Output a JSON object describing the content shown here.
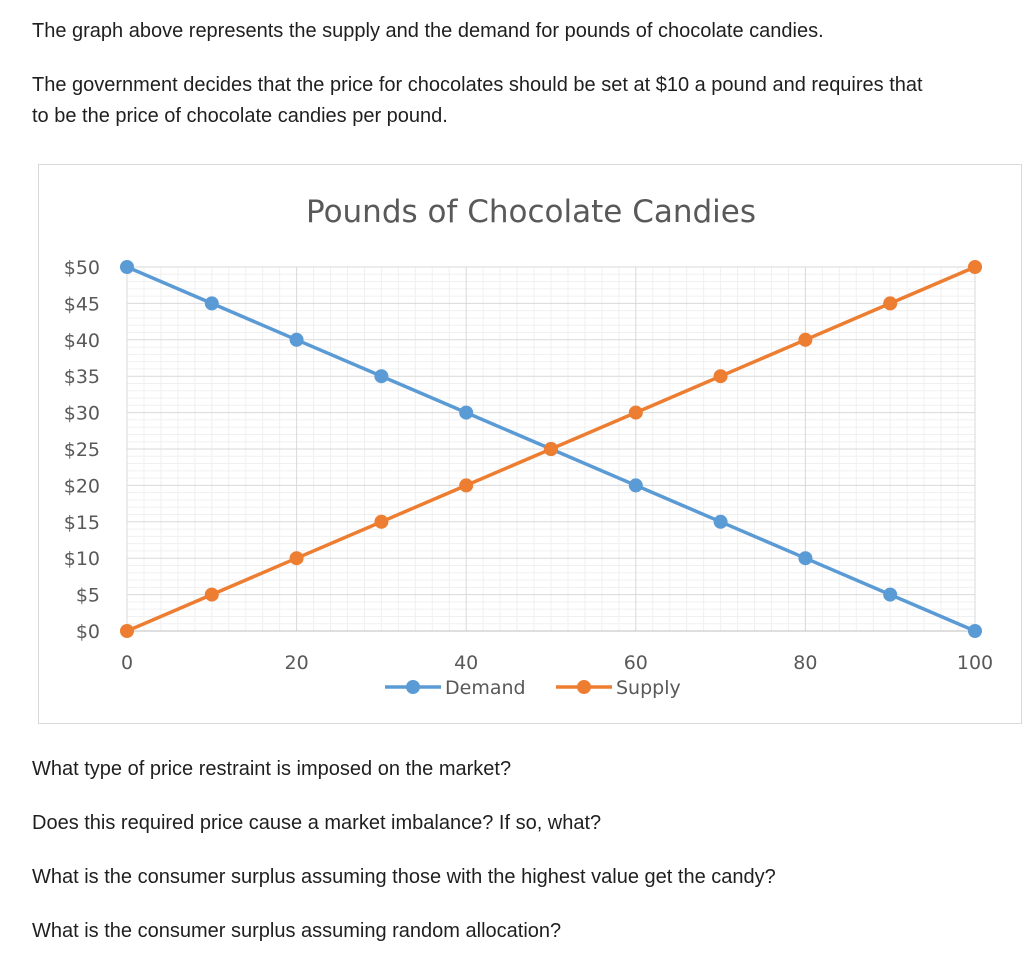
{
  "intro": {
    "line1": "The graph above represents the supply and the demand for pounds of chocolate candies.",
    "line2": "The government decides that the price for chocolates should be set at $10 a pound and requires that",
    "line3": "to be the price of chocolate candies per pound."
  },
  "chart_data": {
    "type": "line",
    "title": "Pounds of Chocolate Candies",
    "xlabel": "",
    "ylabel": "",
    "x": [
      0,
      10,
      20,
      30,
      40,
      50,
      60,
      70,
      80,
      90,
      100
    ],
    "xlim": [
      0,
      100
    ],
    "ylim": [
      0,
      50
    ],
    "x_ticks": [
      0,
      20,
      40,
      60,
      80,
      100
    ],
    "x_tick_labels": [
      "0",
      "20",
      "40",
      "60",
      "80",
      "100"
    ],
    "y_ticks": [
      0,
      5,
      10,
      15,
      20,
      25,
      30,
      35,
      40,
      45,
      50
    ],
    "y_tick_labels": [
      "$0",
      "$5",
      "$10",
      "$15",
      "$20",
      "$25",
      "$30",
      "$35",
      "$40",
      "$45",
      "$50"
    ],
    "grid": true,
    "legend": "bottom",
    "series": [
      {
        "name": "Demand",
        "color": "#5b9bd5",
        "values": [
          50,
          45,
          40,
          35,
          30,
          25,
          20,
          15,
          10,
          5,
          0
        ]
      },
      {
        "name": "Supply",
        "color": "#ed7d31",
        "values": [
          0,
          5,
          10,
          15,
          20,
          25,
          30,
          35,
          40,
          45,
          50
        ]
      }
    ]
  },
  "questions": [
    "What type of price restraint is imposed on the market?",
    "Does this required price cause a market imbalance? If so, what?",
    "What is the consumer surplus assuming those with the highest value get the candy?",
    "What is the consumer surplus assuming random allocation?"
  ]
}
